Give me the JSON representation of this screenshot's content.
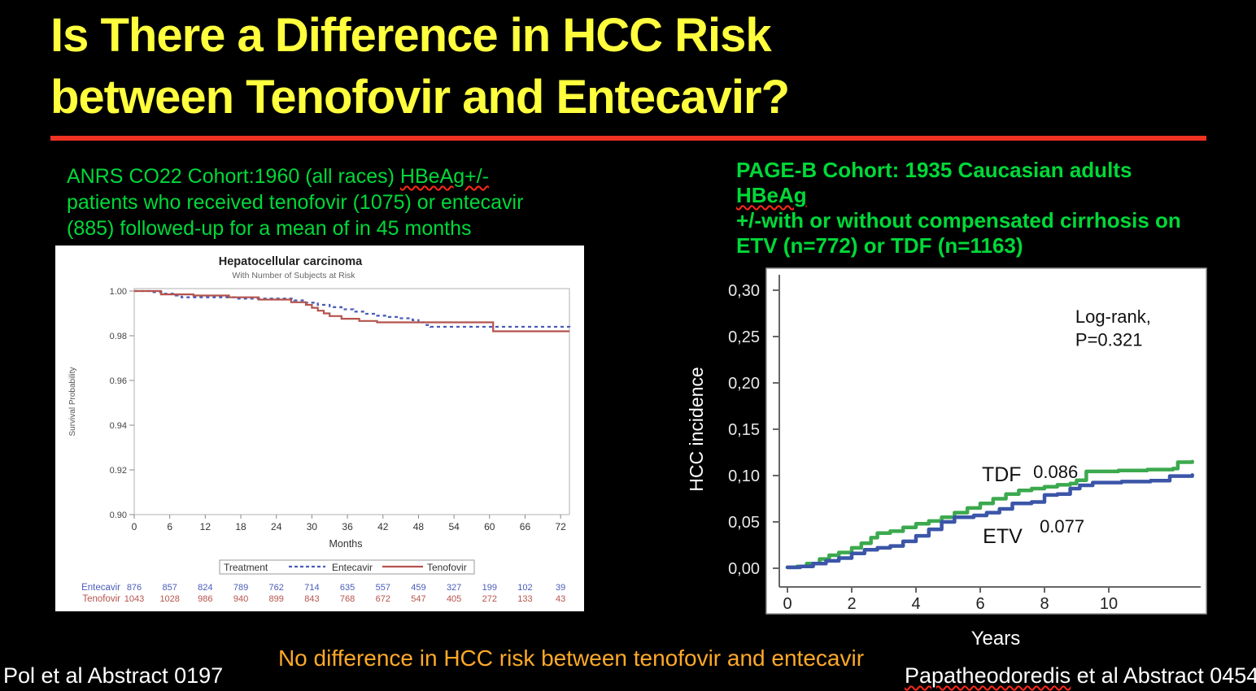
{
  "slide": {
    "title_line1": "Is There a Difference in HCC Risk",
    "title_line2": "between Tenofovir and Entecavir?",
    "title_color": "#FFFF3D",
    "divider_color": "#F03222",
    "background": "#000000"
  },
  "cohorts": {
    "anrs": {
      "line1_pre": "ANRS CO22 Cohort:1960 (all races) ",
      "line1_wavy": "HBeAg+/-",
      "line2": "patients who received tenofovir (1075) or entecavir",
      "line3": "(885) followed-up for a mean of in 45 months",
      "color": "#00D939"
    },
    "pageb": {
      "line1_pre": "PAGE-B Cohort: 1935 Caucasian adults ",
      "line1_wavy": "HBeAg",
      "line2": "+/-with or without compensated cirrhosis on",
      "line3": "ETV (n=772) or TDF (n=1163)",
      "color": "#00D939"
    }
  },
  "footer": {
    "conclusion": "No difference in HCC risk between tenofovir and entecavir",
    "conclusion_color": "#FFA928",
    "left_citation": "Pol et al Abstract 0197",
    "right_citation_name": "Papatheodoredis",
    "right_citation_rest": " et al Abstract 0454"
  },
  "chart_data": [
    {
      "type": "line",
      "title": "Hepatocellular carcinoma",
      "subtitle": "With Number of Subjects at Risk",
      "xlabel": "Months",
      "ylabel": "Survival Probability",
      "xlim": [
        0,
        73.5
      ],
      "ylim": [
        0.9,
        1.0
      ],
      "xticks": [
        0,
        6,
        12,
        18,
        24,
        30,
        36,
        42,
        48,
        54,
        60,
        66,
        72
      ],
      "yticks": [
        {
          "v": 1.0,
          "label": "1.00"
        },
        {
          "v": 0.98,
          "label": "0.98"
        },
        {
          "v": 0.96,
          "label": "0.96"
        },
        {
          "v": 0.94,
          "label": "0.94"
        },
        {
          "v": 0.92,
          "label": "0.92"
        },
        {
          "v": 0.9,
          "label": "0.90"
        }
      ],
      "legend": {
        "title": "Treatment",
        "entries": [
          {
            "name": "Entecavir",
            "color": "#4A5CB8",
            "style": "dashed"
          },
          {
            "name": "Tenofovir",
            "color": "#B5534C",
            "style": "solid"
          }
        ]
      },
      "series": [
        {
          "name": "Entecavir",
          "color": "#4A5CB8",
          "dash": true,
          "points": [
            [
              0,
              1.0
            ],
            [
              3,
              0.9995
            ],
            [
              5,
              0.9988
            ],
            [
              7,
              0.998
            ],
            [
              8,
              0.9972
            ],
            [
              17,
              0.9966
            ],
            [
              27,
              0.9958
            ],
            [
              29,
              0.9948
            ],
            [
              31,
              0.9938
            ],
            [
              33,
              0.9928
            ],
            [
              35,
              0.9918
            ],
            [
              37,
              0.9908
            ],
            [
              39,
              0.9898
            ],
            [
              41,
              0.989
            ],
            [
              43,
              0.9884
            ],
            [
              45,
              0.9878
            ],
            [
              47,
              0.987
            ],
            [
              48,
              0.986
            ],
            [
              49,
              0.9848
            ],
            [
              50,
              0.984
            ],
            [
              73.5,
              0.9838
            ]
          ]
        },
        {
          "name": "Tenofovir",
          "color": "#B5534C",
          "dash": false,
          "points": [
            [
              0,
              1.0
            ],
            [
              4.5,
              0.9985
            ],
            [
              10,
              0.998
            ],
            [
              16,
              0.9972
            ],
            [
              21,
              0.9962
            ],
            [
              26.5,
              0.995
            ],
            [
              29,
              0.9938
            ],
            [
              30,
              0.9925
            ],
            [
              31,
              0.9912
            ],
            [
              32,
              0.99
            ],
            [
              33,
              0.9888
            ],
            [
              35,
              0.9876
            ],
            [
              38,
              0.9866
            ],
            [
              41,
              0.986
            ],
            [
              60.6,
              0.982
            ],
            [
              73.5,
              0.982
            ]
          ]
        }
      ],
      "risk_table": {
        "months": [
          0,
          6,
          12,
          18,
          24,
          30,
          36,
          42,
          48,
          54,
          60,
          66,
          72
        ],
        "rows": [
          {
            "label": "Entecavir",
            "color": "#4A5CB8",
            "values": [
              876,
              857,
              824,
              789,
              762,
              714,
              635,
              557,
              459,
              327,
              199,
              102,
              39
            ]
          },
          {
            "label": "Tenofovir",
            "color": "#B5534C",
            "values": [
              1043,
              1028,
              986,
              940,
              899,
              843,
              768,
              672,
              547,
              405,
              272,
              133,
              43
            ]
          }
        ]
      }
    },
    {
      "type": "line",
      "title": "",
      "xlabel": "Years",
      "ylabel": "HCC incidence",
      "xlim": [
        0,
        12.7
      ],
      "ylim": [
        0,
        0.32
      ],
      "xticks": [
        0,
        2,
        4,
        6,
        8,
        10
      ],
      "yticks": [
        {
          "v": 0.0,
          "label": "0,00"
        },
        {
          "v": 0.05,
          "label": "0,05"
        },
        {
          "v": 0.1,
          "label": "0,10"
        },
        {
          "v": 0.15,
          "label": "0,15"
        },
        {
          "v": 0.2,
          "label": "0,20"
        },
        {
          "v": 0.25,
          "label": "0,25"
        },
        {
          "v": 0.3,
          "label": "0,30"
        }
      ],
      "series": [
        {
          "name": "TDF",
          "color": "#3CA94E",
          "points": [
            [
              0,
              0.001
            ],
            [
              0.3,
              0.002
            ],
            [
              0.6,
              0.005
            ],
            [
              1,
              0.01
            ],
            [
              1.3,
              0.014
            ],
            [
              1.6,
              0.017
            ],
            [
              2,
              0.022
            ],
            [
              2.3,
              0.027
            ],
            [
              2.6,
              0.033
            ],
            [
              2.8,
              0.038
            ],
            [
              3.2,
              0.04
            ],
            [
              3.6,
              0.044
            ],
            [
              4,
              0.048
            ],
            [
              4.4,
              0.051
            ],
            [
              4.8,
              0.055
            ],
            [
              5.2,
              0.06
            ],
            [
              5.6,
              0.065
            ],
            [
              6,
              0.07
            ],
            [
              6.4,
              0.075
            ],
            [
              6.8,
              0.08
            ],
            [
              7.2,
              0.084
            ],
            [
              7.6,
              0.086
            ],
            [
              8,
              0.088
            ],
            [
              8.4,
              0.09
            ],
            [
              8.8,
              0.0915
            ],
            [
              9,
              0.095
            ],
            [
              9.3,
              0.1045
            ],
            [
              10.3,
              0.1055
            ],
            [
              11.2,
              0.1065
            ],
            [
              12,
              0.1075
            ],
            [
              12.15,
              0.1145
            ],
            [
              12.6,
              0.115
            ]
          ]
        },
        {
          "name": "ETV",
          "color": "#3B55A8",
          "points": [
            [
              0,
              0.001
            ],
            [
              0.4,
              0.002
            ],
            [
              0.8,
              0.005
            ],
            [
              1.2,
              0.008
            ],
            [
              1.6,
              0.011
            ],
            [
              2,
              0.016
            ],
            [
              2.4,
              0.02
            ],
            [
              2.8,
              0.022
            ],
            [
              3.2,
              0.024
            ],
            [
              3.6,
              0.029
            ],
            [
              4,
              0.035
            ],
            [
              4.4,
              0.042
            ],
            [
              4.8,
              0.05
            ],
            [
              5.2,
              0.055
            ],
            [
              5.8,
              0.057
            ],
            [
              6.2,
              0.06
            ],
            [
              6.6,
              0.064
            ],
            [
              7,
              0.07
            ],
            [
              7.6,
              0.0715
            ],
            [
              8,
              0.079
            ],
            [
              8.4,
              0.08
            ],
            [
              8.8,
              0.086
            ],
            [
              9.1,
              0.0895
            ],
            [
              9.5,
              0.0925
            ],
            [
              10.4,
              0.0935
            ],
            [
              11.3,
              0.0945
            ],
            [
              11.9,
              0.0995
            ],
            [
              12.6,
              0.1005
            ]
          ]
        }
      ],
      "annotations": [
        {
          "text": "Log-rank,",
          "x": 8.96,
          "y": 0.265,
          "size": 22
        },
        {
          "text": "P=0.321",
          "x": 8.96,
          "y": 0.24,
          "size": 22
        },
        {
          "text": "TDF",
          "x": 6.05,
          "y": 0.094,
          "size": 25
        },
        {
          "text": "0.086",
          "x": 7.65,
          "y": 0.0974,
          "size": 22
        },
        {
          "text": "ETV",
          "x": 6.08,
          "y": 0.0272,
          "size": 25
        },
        {
          "text": "0.077",
          "x": 7.85,
          "y": 0.0386,
          "size": 22
        }
      ]
    }
  ]
}
